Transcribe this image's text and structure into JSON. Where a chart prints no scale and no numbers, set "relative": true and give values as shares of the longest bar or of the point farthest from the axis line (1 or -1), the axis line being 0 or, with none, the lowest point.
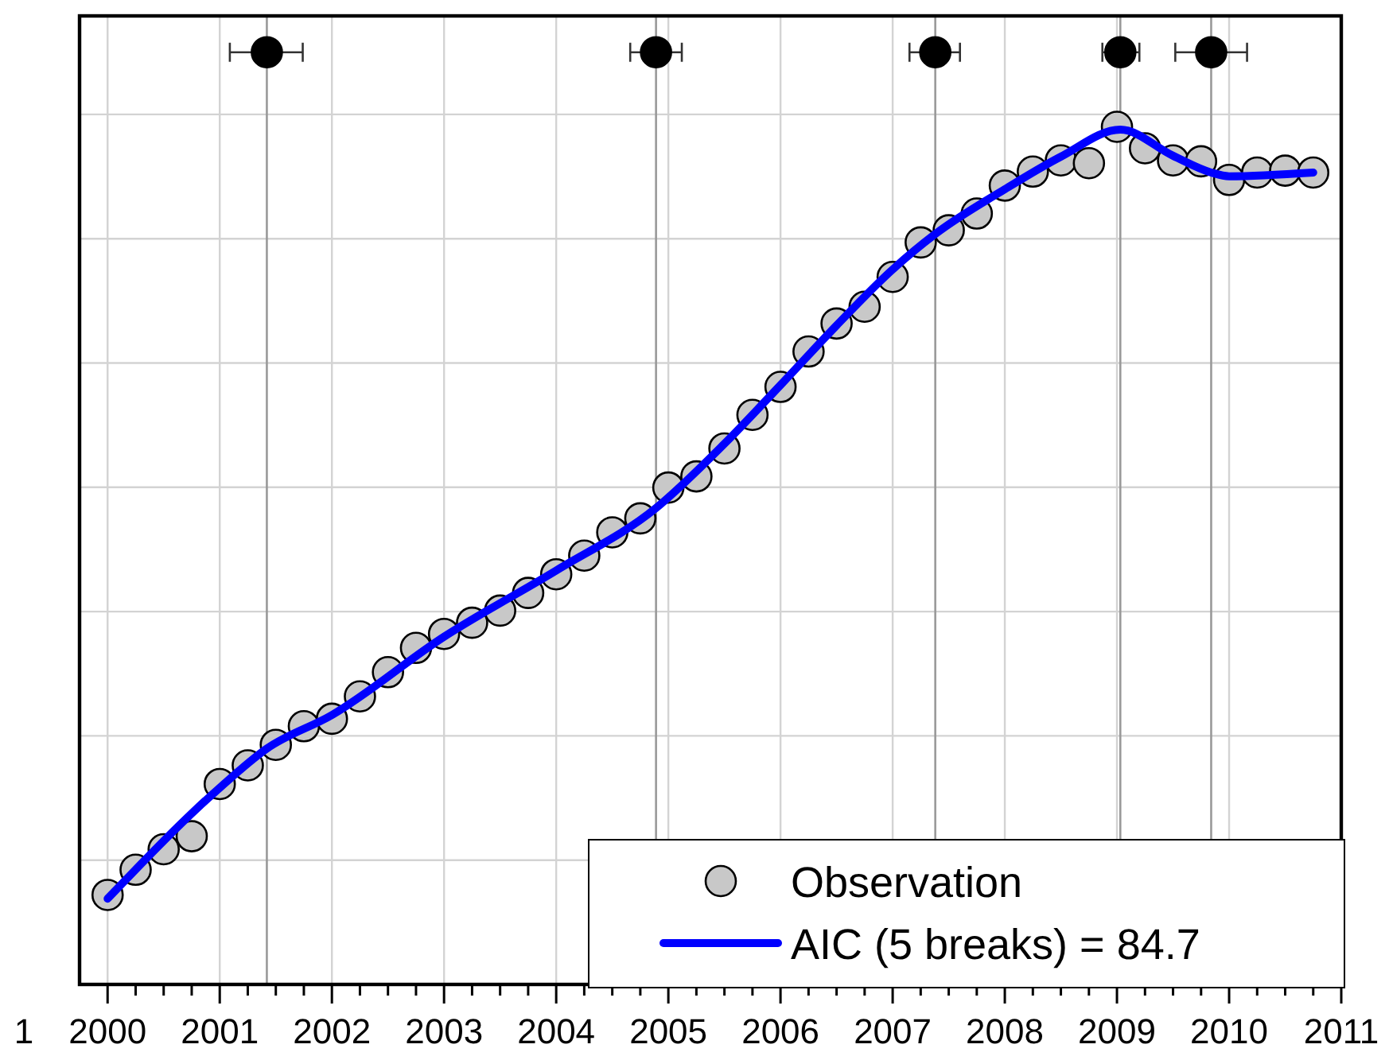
{
  "chart_data": {
    "type": "scatter",
    "relative": true,
    "xlim": [
      1999.75,
      2011
    ],
    "xticks": [
      {
        "value": 2000,
        "label": "2000"
      },
      {
        "value": 2000.25,
        "label": null
      },
      {
        "value": 2000.5,
        "label": null
      },
      {
        "value": 2000.75,
        "label": null
      },
      {
        "value": 2001,
        "label": "2001"
      },
      {
        "value": 2001.25,
        "label": null
      },
      {
        "value": 2001.5,
        "label": null
      },
      {
        "value": 2001.75,
        "label": null
      },
      {
        "value": 2002,
        "label": "2002"
      },
      {
        "value": 2002.25,
        "label": null
      },
      {
        "value": 2002.5,
        "label": null
      },
      {
        "value": 2002.75,
        "label": null
      },
      {
        "value": 2003,
        "label": "2003"
      },
      {
        "value": 2003.25,
        "label": null
      },
      {
        "value": 2003.5,
        "label": null
      },
      {
        "value": 2003.75,
        "label": null
      },
      {
        "value": 2004,
        "label": "2004"
      },
      {
        "value": 2004.25,
        "label": null
      },
      {
        "value": 2004.5,
        "label": null
      },
      {
        "value": 2004.75,
        "label": null
      },
      {
        "value": 2005,
        "label": "2005"
      },
      {
        "value": 2005.25,
        "label": null
      },
      {
        "value": 2005.5,
        "label": null
      },
      {
        "value": 2005.75,
        "label": null
      },
      {
        "value": 2006,
        "label": "2006"
      },
      {
        "value": 2006.25,
        "label": null
      },
      {
        "value": 2006.5,
        "label": null
      },
      {
        "value": 2006.75,
        "label": null
      },
      {
        "value": 2007,
        "label": "2007"
      },
      {
        "value": 2007.25,
        "label": null
      },
      {
        "value": 2007.5,
        "label": null
      },
      {
        "value": 2007.75,
        "label": null
      },
      {
        "value": 2008,
        "label": "2008"
      },
      {
        "value": 2008.25,
        "label": null
      },
      {
        "value": 2008.5,
        "label": null
      },
      {
        "value": 2008.75,
        "label": null
      },
      {
        "value": 2009,
        "label": "2009"
      },
      {
        "value": 2009.25,
        "label": null
      },
      {
        "value": 2009.5,
        "label": null
      },
      {
        "value": 2009.75,
        "label": null
      },
      {
        "value": 2010,
        "label": "2010"
      },
      {
        "value": 2010.25,
        "label": null
      },
      {
        "value": 2010.5,
        "label": null
      },
      {
        "value": 2010.75,
        "label": null
      },
      {
        "value": 2011,
        "label": "2011"
      }
    ],
    "grid": true,
    "legend": "bottom right",
    "annotations": [
      "1"
    ],
    "ref_lines": [
      {
        "axis": "x",
        "value": 2001.42,
        "color": "#999999"
      },
      {
        "axis": "x",
        "value": 2004.89,
        "color": "#999999"
      },
      {
        "axis": "x",
        "value": 2007.38,
        "color": "#999999"
      },
      {
        "axis": "x",
        "value": 2009.03,
        "color": "#999999"
      },
      {
        "axis": "x",
        "value": 2009.84,
        "color": "#999999"
      }
    ],
    "series": [
      {
        "name": "Observation",
        "marker": "circle",
        "color": "#c8c8c8",
        "x": [
          2000,
          2000.25,
          2000.5,
          2000.75,
          2001,
          2001.25,
          2001.5,
          2001.75,
          2002,
          2002.25,
          2002.5,
          2002.75,
          2003,
          2003.25,
          2003.5,
          2003.75,
          2004,
          2004.25,
          2004.5,
          2004.75,
          2005,
          2005.25,
          2005.5,
          2005.75,
          2006,
          2006.25,
          2006.5,
          2006.75,
          2007,
          2007.25,
          2007.5,
          2007.75,
          2008,
          2008.25,
          2008.5,
          2008.75,
          2009,
          2009.25,
          2009.5,
          2009.75,
          2010,
          2010.25,
          2010.5,
          2010.75
        ],
        "values": [
          0.096,
          0.123,
          0.145,
          0.159,
          0.215,
          0.235,
          0.257,
          0.277,
          0.285,
          0.309,
          0.335,
          0.361,
          0.376,
          0.388,
          0.401,
          0.42,
          0.44,
          0.46,
          0.485,
          0.5,
          0.533,
          0.545,
          0.575,
          0.611,
          0.641,
          0.679,
          0.709,
          0.727,
          0.759,
          0.796,
          0.809,
          0.827,
          0.857,
          0.872,
          0.884,
          0.881,
          0.92,
          0.897,
          0.884,
          0.883,
          0.863,
          0.871,
          0.873,
          0.871
        ]
      },
      {
        "name": "AIC (5 breaks) = 84.7",
        "type": "line",
        "marker": "none",
        "line_style": "solid",
        "color": "#0000ff",
        "x": [
          2000,
          2001,
          2001.42,
          2002,
          2003,
          2004,
          2004.89,
          2005.5,
          2006,
          2006.5,
          2007,
          2007.38,
          2008,
          2008.5,
          2009.03,
          2009.5,
          2009.84,
          2010,
          2010.75
        ],
        "values": [
          0.092,
          0.211,
          0.253,
          0.289,
          0.373,
          0.444,
          0.511,
          0.58,
          0.643,
          0.707,
          0.767,
          0.805,
          0.853,
          0.888,
          0.917,
          0.889,
          0.871,
          0.867,
          0.871
        ]
      },
      {
        "marker": "circle",
        "color": "#000000",
        "x": [
          2001.42,
          2004.89,
          2007.38,
          2009.03,
          2009.84
        ],
        "values": [
          1,
          1,
          1,
          1,
          1
        ],
        "xerrors": [
          [
            2001.09,
            2001.74
          ],
          [
            2004.66,
            2005.12
          ],
          [
            2007.15,
            2007.6
          ],
          [
            2008.87,
            2009.2
          ],
          [
            2009.52,
            2010.16
          ]
        ]
      }
    ]
  }
}
